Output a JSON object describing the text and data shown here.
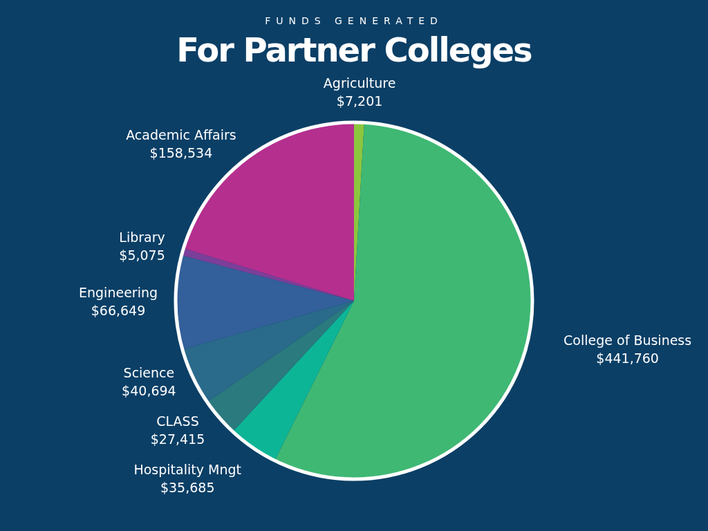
{
  "chart_data": {
    "type": "pie",
    "subtitle": "FUNDS GENERATED",
    "title": "For Partner Colleges",
    "categories": [
      "Agriculture",
      "College of Business",
      "Hospitality Mngt",
      "CLASS",
      "Science",
      "Engineering",
      "Library",
      "Academic Affairs"
    ],
    "values": [
      7201,
      441760,
      35685,
      27415,
      40694,
      66649,
      5075,
      158534
    ],
    "value_labels": [
      "$7,201",
      "$441,760",
      "$35,685",
      "$27,415",
      "$40,694",
      "$66,649",
      "$5,075",
      "$158,534"
    ],
    "colors": [
      "#8cc63f",
      "#3fb874",
      "#0db597",
      "#2b7a7e",
      "#2a6a8a",
      "#33609a",
      "#7b3f9a",
      "#b52f8f"
    ],
    "legend": false
  }
}
